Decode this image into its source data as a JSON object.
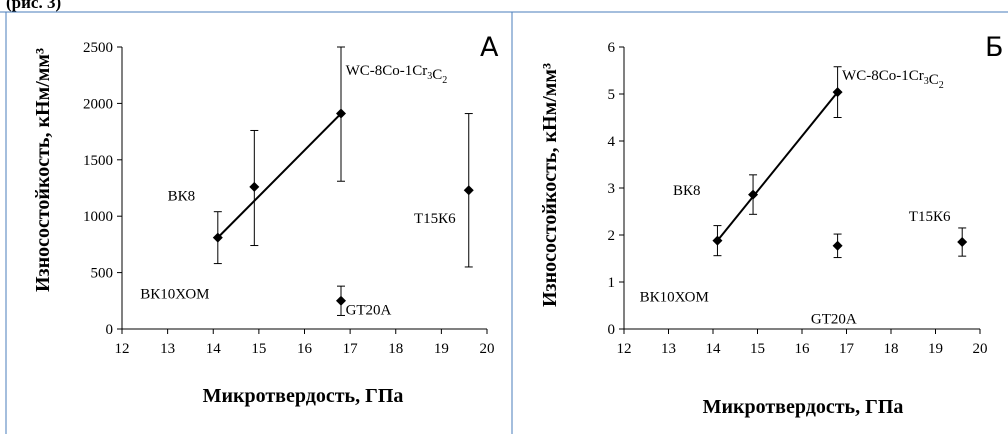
{
  "header_fragment": "(рис. 3)",
  "chart_data": [
    {
      "type": "scatter",
      "panel_letter": "А",
      "xlabel": "Микротвердость, ГПа",
      "ylabel": "Износостойкость, кНм/мм³",
      "xlim": [
        12,
        20
      ],
      "ylim": [
        0,
        2500
      ],
      "x_ticks": [
        "12",
        "13",
        "14",
        "15",
        "16",
        "17",
        "18",
        "19",
        "20"
      ],
      "y_ticks": [
        "0",
        "500",
        "1000",
        "1500",
        "2000",
        "2500"
      ],
      "points": [
        {
          "x": 14.1,
          "y": 810,
          "err_low": 580,
          "err_high": 1040
        },
        {
          "x": 14.9,
          "y": 1260,
          "err_low": 740,
          "err_high": 1760
        },
        {
          "x": 16.8,
          "y": 1910,
          "err_low": 1310,
          "err_high": 2500
        },
        {
          "x": 16.8,
          "y": 250,
          "err_low": 120,
          "err_high": 380
        },
        {
          "x": 19.6,
          "y": 1230,
          "err_low": 550,
          "err_high": 1910
        }
      ],
      "trend_line": [
        {
          "x": 14.1,
          "y": 810
        },
        {
          "x": 16.8,
          "y": 1910
        }
      ],
      "annotations": [
        {
          "text": "WC-8Co-1Cr",
          "sub1": "3",
          "mid": "C",
          "sub2": "2",
          "x": 16.9,
          "y": 2250
        },
        {
          "text": "ВК8",
          "x": 13.0,
          "y": 1140
        },
        {
          "text": "Т15К6",
          "x": 18.4,
          "y": 940
        },
        {
          "text": "ВК10ХОМ",
          "x": 12.4,
          "y": 270
        },
        {
          "text": "GT20A",
          "x": 16.9,
          "y": 130
        }
      ]
    },
    {
      "type": "scatter",
      "panel_letter": "Б",
      "xlabel": "Микротвердость, ГПа",
      "ylabel": "Износостойкость, кНм/мм³",
      "xlim": [
        12,
        20
      ],
      "ylim": [
        0,
        6
      ],
      "x_ticks": [
        "12",
        "13",
        "14",
        "15",
        "16",
        "17",
        "18",
        "19",
        "20"
      ],
      "y_ticks": [
        "0",
        "1",
        "2",
        "3",
        "4",
        "5",
        "6"
      ],
      "points": [
        {
          "x": 14.1,
          "y": 1.88,
          "err_low": 1.56,
          "err_high": 2.2
        },
        {
          "x": 14.9,
          "y": 2.86,
          "err_low": 2.44,
          "err_high": 3.28
        },
        {
          "x": 16.8,
          "y": 5.04,
          "err_low": 4.5,
          "err_high": 5.58
        },
        {
          "x": 16.8,
          "y": 1.77,
          "err_low": 1.52,
          "err_high": 2.02
        },
        {
          "x": 19.6,
          "y": 1.85,
          "err_low": 1.55,
          "err_high": 2.15
        }
      ],
      "trend_line": [
        {
          "x": 14.1,
          "y": 1.88
        },
        {
          "x": 16.8,
          "y": 5.04
        }
      ],
      "annotations": [
        {
          "text": "WC-8Co-1Cr",
          "sub1": "3",
          "mid": "C",
          "sub2": "2",
          "x": 16.9,
          "y": 5.3
        },
        {
          "text": "ВК8",
          "x": 13.1,
          "y": 2.85
        },
        {
          "text": "Т15К6",
          "x": 18.4,
          "y": 2.3
        },
        {
          "text": "ВК10ХОМ",
          "x": 12.35,
          "y": 0.58
        },
        {
          "text": "GT20A",
          "x": 16.2,
          "y": 0.12
        }
      ]
    }
  ]
}
